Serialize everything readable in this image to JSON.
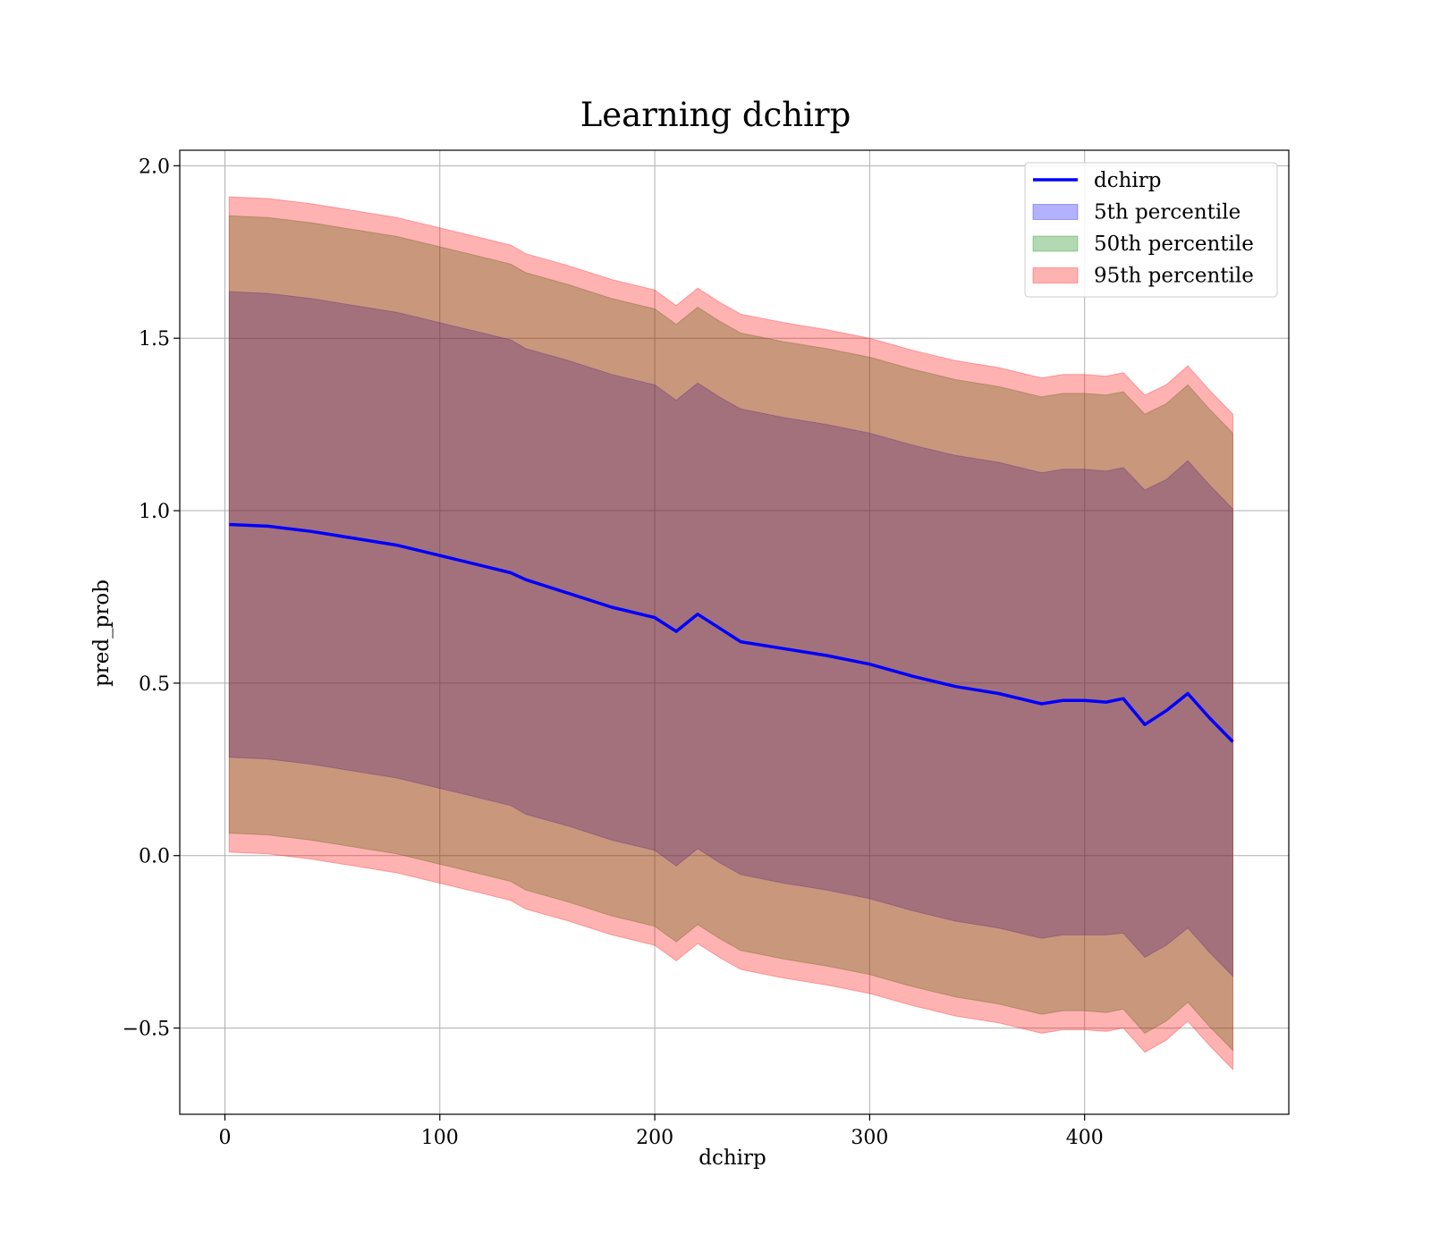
{
  "chart_data": {
    "type": "line",
    "title": "Learning dchirp",
    "xlabel": "dchirp",
    "ylabel": "pred_prob",
    "xlim": [
      -21,
      495
    ],
    "ylim": [
      -0.75,
      2.045
    ],
    "xticks": [
      0,
      100,
      200,
      300,
      400
    ],
    "yticks": [
      -0.5,
      0.0,
      0.5,
      1.0,
      1.5,
      2.0
    ],
    "xtick_labels": [
      "0",
      "100",
      "200",
      "300",
      "400"
    ],
    "ytick_labels": [
      "−0.5",
      "0.0",
      "0.5",
      "1.0",
      "1.5",
      "2.0"
    ],
    "grid": true,
    "legend_position": "top-right",
    "x": [
      2,
      20,
      40,
      60,
      80,
      100,
      120,
      133,
      140,
      160,
      180,
      200,
      210,
      220,
      230,
      240,
      260,
      280,
      300,
      320,
      340,
      360,
      380,
      390,
      400,
      410,
      418,
      428,
      438,
      448,
      458,
      469
    ],
    "series": [
      {
        "name": "dchirp",
        "kind": "line",
        "color": "#0000ff",
        "values": [
          0.96,
          0.955,
          0.94,
          0.92,
          0.9,
          0.87,
          0.84,
          0.82,
          0.8,
          0.76,
          0.72,
          0.69,
          0.65,
          0.7,
          0.66,
          0.62,
          0.6,
          0.58,
          0.555,
          0.52,
          0.49,
          0.47,
          0.44,
          0.45,
          0.45,
          0.445,
          0.455,
          0.38,
          0.42,
          0.47,
          0.4,
          0.33
        ]
      },
      {
        "name": "5th percentile",
        "kind": "band",
        "color": "#0000ff",
        "lower": [
          0.285,
          0.28,
          0.265,
          0.245,
          0.225,
          0.195,
          0.165,
          0.145,
          0.12,
          0.085,
          0.045,
          0.015,
          -0.03,
          0.02,
          -0.02,
          -0.055,
          -0.08,
          -0.1,
          -0.125,
          -0.16,
          -0.19,
          -0.21,
          -0.24,
          -0.23,
          -0.23,
          -0.23,
          -0.225,
          -0.295,
          -0.26,
          -0.21,
          -0.28,
          -0.35
        ],
        "upper": [
          1.635,
          1.63,
          1.615,
          1.595,
          1.575,
          1.545,
          1.515,
          1.495,
          1.47,
          1.435,
          1.395,
          1.365,
          1.32,
          1.37,
          1.33,
          1.295,
          1.27,
          1.25,
          1.225,
          1.19,
          1.16,
          1.14,
          1.11,
          1.12,
          1.12,
          1.115,
          1.125,
          1.06,
          1.09,
          1.145,
          1.075,
          1.005
        ]
      },
      {
        "name": "50th percentile",
        "kind": "band",
        "color": "#008000",
        "lower": [
          0.065,
          0.06,
          0.045,
          0.025,
          0.005,
          -0.025,
          -0.055,
          -0.075,
          -0.1,
          -0.135,
          -0.175,
          -0.205,
          -0.25,
          -0.2,
          -0.24,
          -0.275,
          -0.3,
          -0.32,
          -0.345,
          -0.38,
          -0.41,
          -0.43,
          -0.46,
          -0.45,
          -0.45,
          -0.455,
          -0.445,
          -0.515,
          -0.48,
          -0.425,
          -0.495,
          -0.565
        ],
        "upper": [
          1.855,
          1.85,
          1.835,
          1.815,
          1.795,
          1.765,
          1.735,
          1.715,
          1.69,
          1.655,
          1.615,
          1.585,
          1.54,
          1.59,
          1.55,
          1.515,
          1.49,
          1.47,
          1.445,
          1.41,
          1.38,
          1.36,
          1.33,
          1.34,
          1.34,
          1.335,
          1.345,
          1.28,
          1.31,
          1.365,
          1.295,
          1.225
        ]
      },
      {
        "name": "95th percentile",
        "kind": "band",
        "color": "#ff0000",
        "lower": [
          0.01,
          0.005,
          -0.01,
          -0.03,
          -0.05,
          -0.08,
          -0.11,
          -0.13,
          -0.155,
          -0.19,
          -0.23,
          -0.26,
          -0.305,
          -0.255,
          -0.295,
          -0.33,
          -0.355,
          -0.375,
          -0.4,
          -0.435,
          -0.465,
          -0.485,
          -0.515,
          -0.505,
          -0.505,
          -0.51,
          -0.5,
          -0.57,
          -0.535,
          -0.48,
          -0.55,
          -0.62
        ],
        "upper": [
          1.91,
          1.905,
          1.89,
          1.87,
          1.85,
          1.82,
          1.79,
          1.77,
          1.745,
          1.71,
          1.67,
          1.64,
          1.595,
          1.645,
          1.605,
          1.57,
          1.545,
          1.525,
          1.5,
          1.465,
          1.435,
          1.415,
          1.385,
          1.395,
          1.395,
          1.39,
          1.4,
          1.335,
          1.365,
          1.42,
          1.35,
          1.28
        ]
      }
    ]
  }
}
